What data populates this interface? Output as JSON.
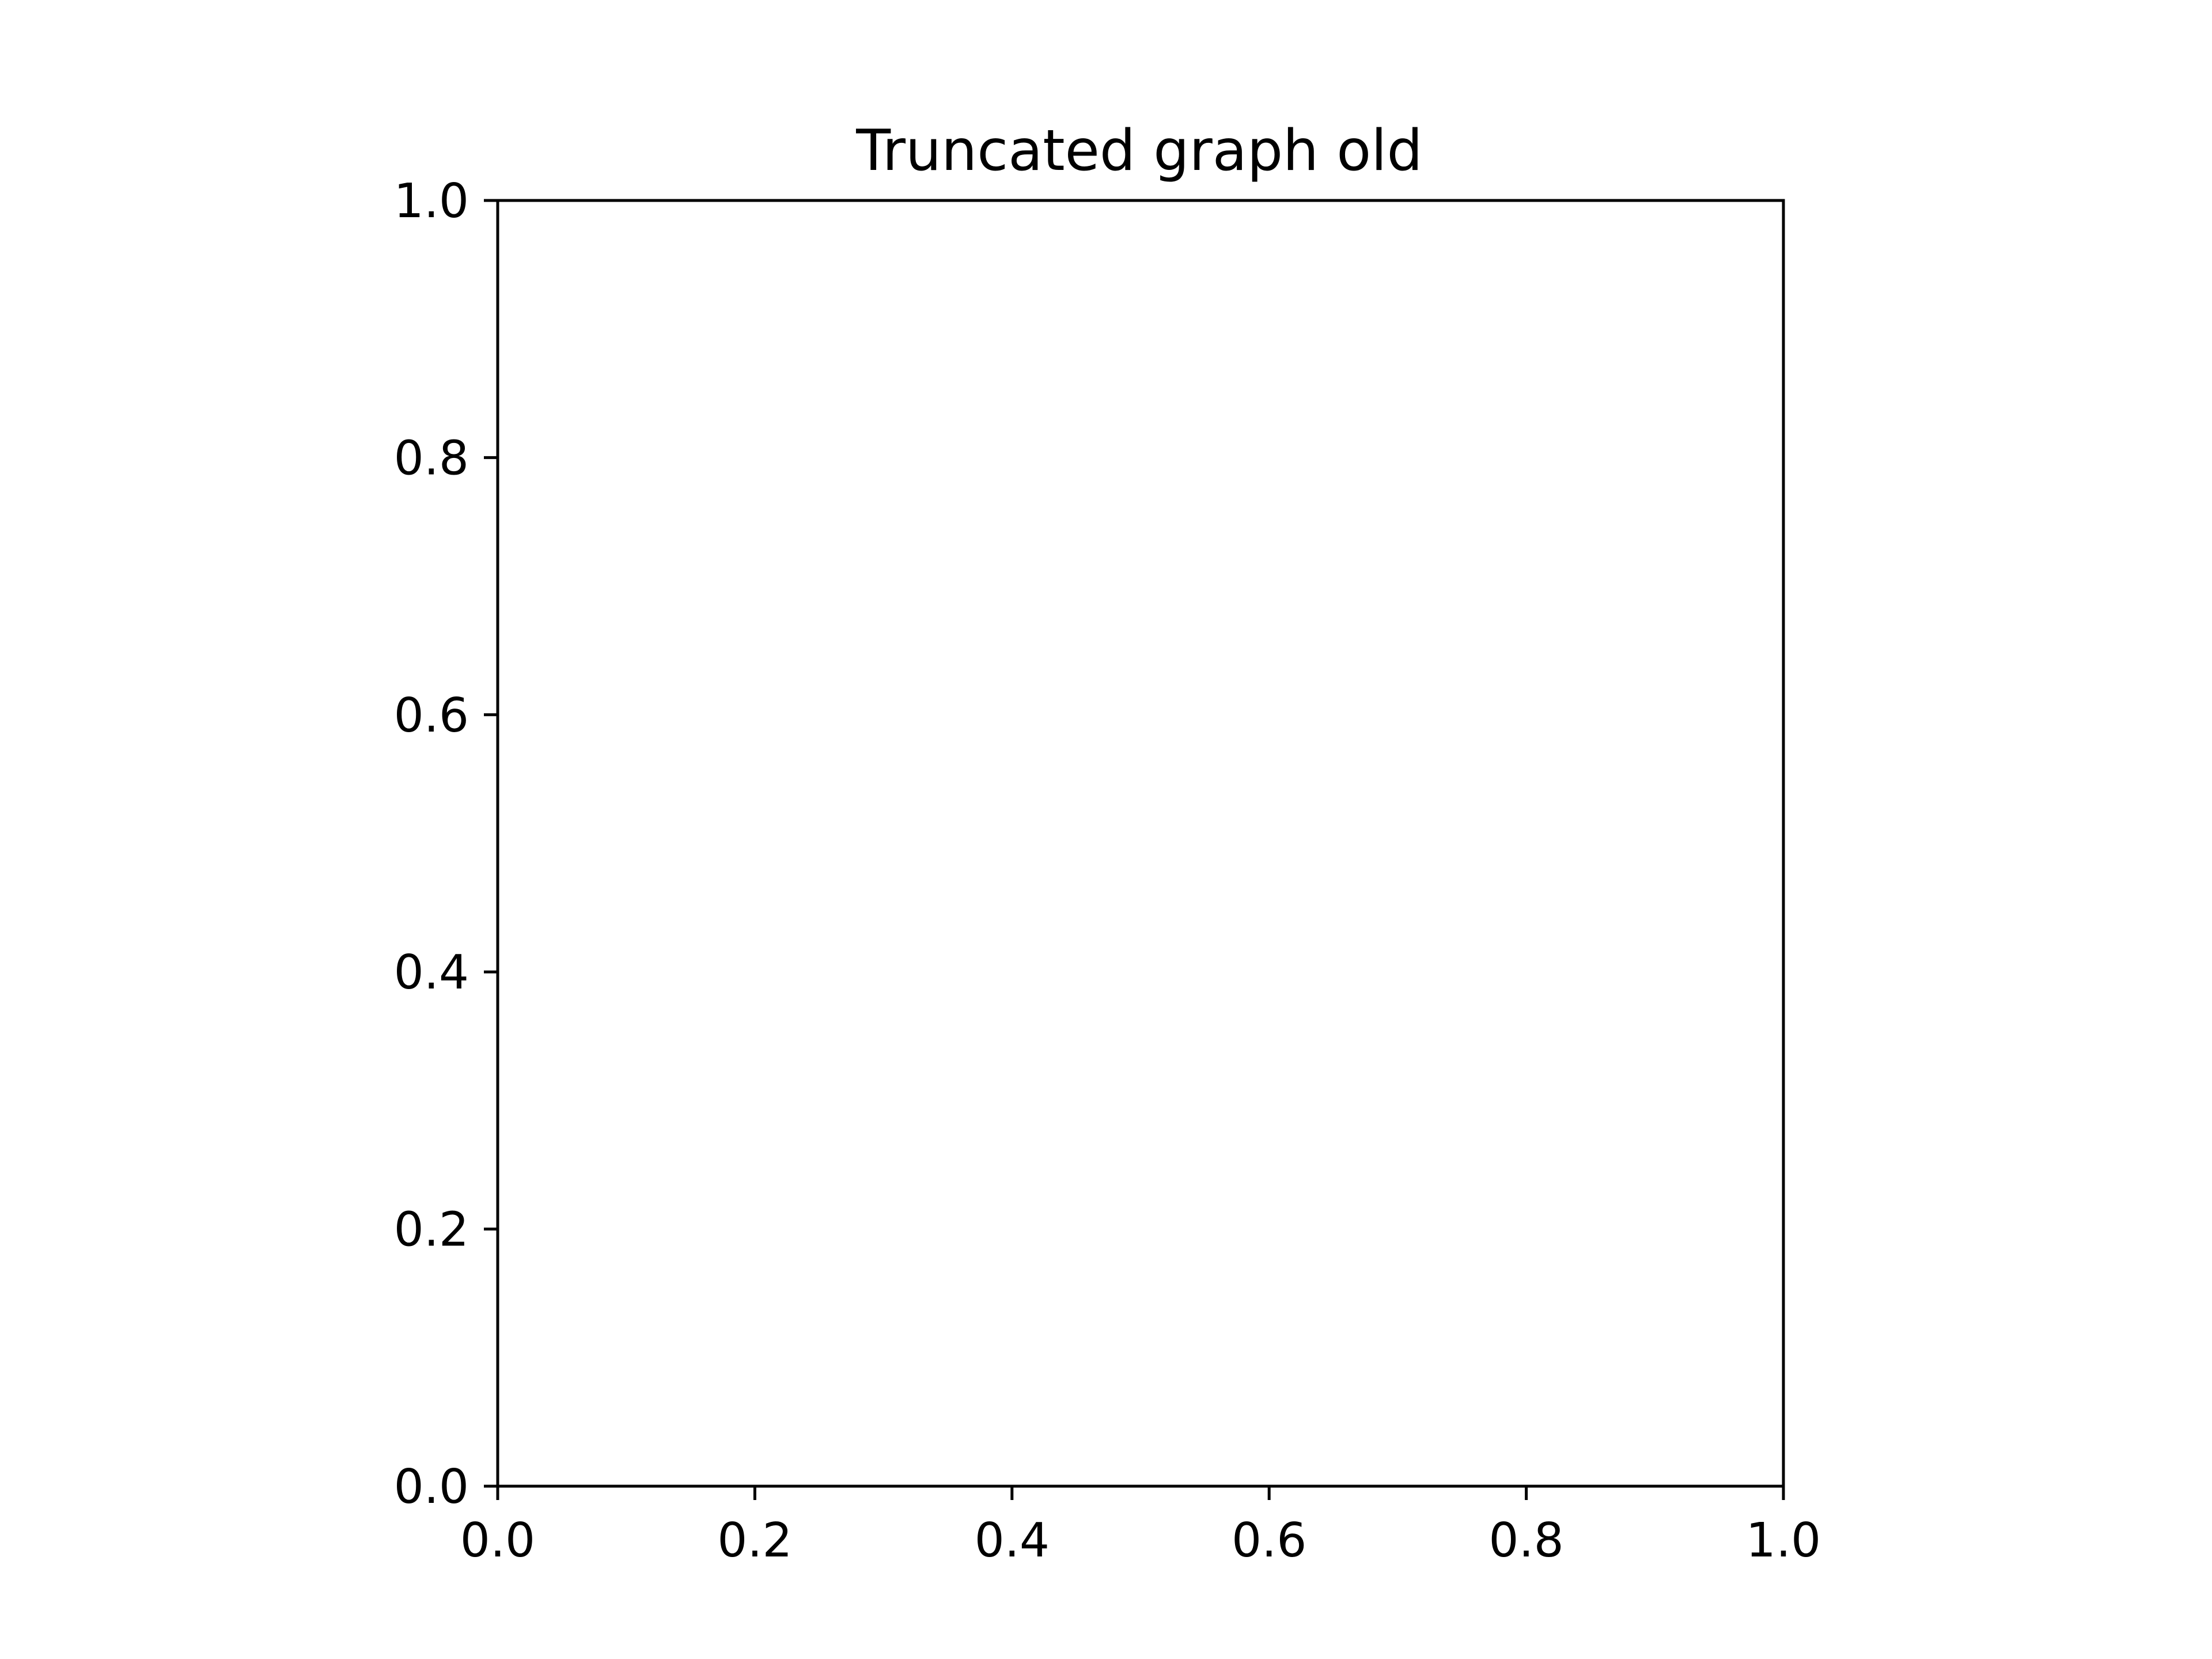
{
  "chart_data": {
    "type": "line",
    "title": "Truncated graph old",
    "xlabel": "",
    "ylabel": "",
    "xlim": [
      0.0,
      1.0
    ],
    "ylim": [
      0.0,
      1.0
    ],
    "xticks": [
      "0.0",
      "0.2",
      "0.4",
      "0.6",
      "0.8",
      "1.0"
    ],
    "yticks": [
      "0.0",
      "0.2",
      "0.4",
      "0.6",
      "0.8",
      "1.0"
    ],
    "grid": false,
    "legend": "none",
    "series": []
  },
  "colors": {
    "background": "#ffffff",
    "axes": "#000000"
  }
}
